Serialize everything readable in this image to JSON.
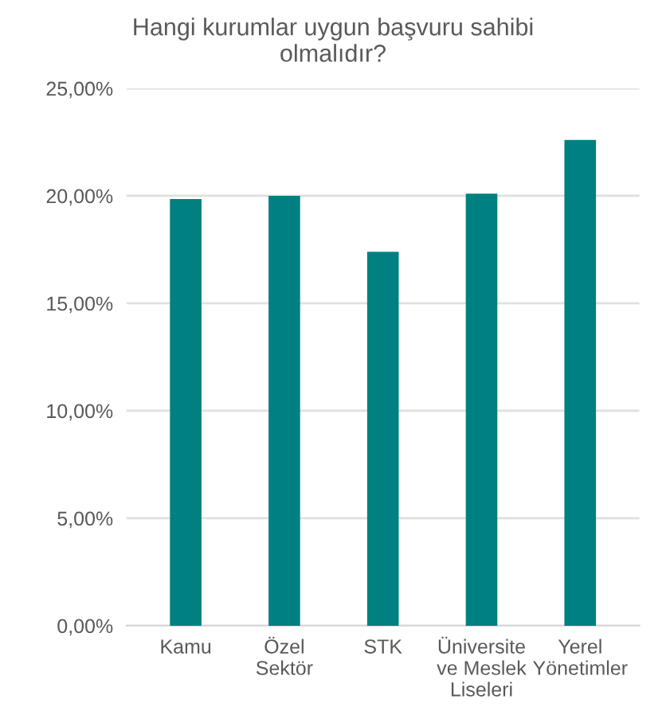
{
  "chart_data": {
    "type": "bar",
    "title": "Hangi kurumlar uygun başvuru sahibi\nolmalıdır?",
    "categories": [
      "Kamu",
      "Özel\nSektör",
      "STK",
      "Üniversite\nve Meslek\nLiseleri",
      "Yerel\nYönetimler"
    ],
    "values": [
      19.85,
      20.0,
      17.4,
      20.1,
      22.6
    ],
    "color": "#008080",
    "ylim": [
      0,
      25
    ],
    "yticks": [
      {
        "value": 0,
        "label": "0,00%"
      },
      {
        "value": 5,
        "label": "5,00%"
      },
      {
        "value": 10,
        "label": "10,00%"
      },
      {
        "value": 15,
        "label": "15,00%"
      },
      {
        "value": 20,
        "label": "20,00%"
      },
      {
        "value": 25,
        "label": "25,00%"
      }
    ],
    "grid": "y",
    "legend": false
  }
}
